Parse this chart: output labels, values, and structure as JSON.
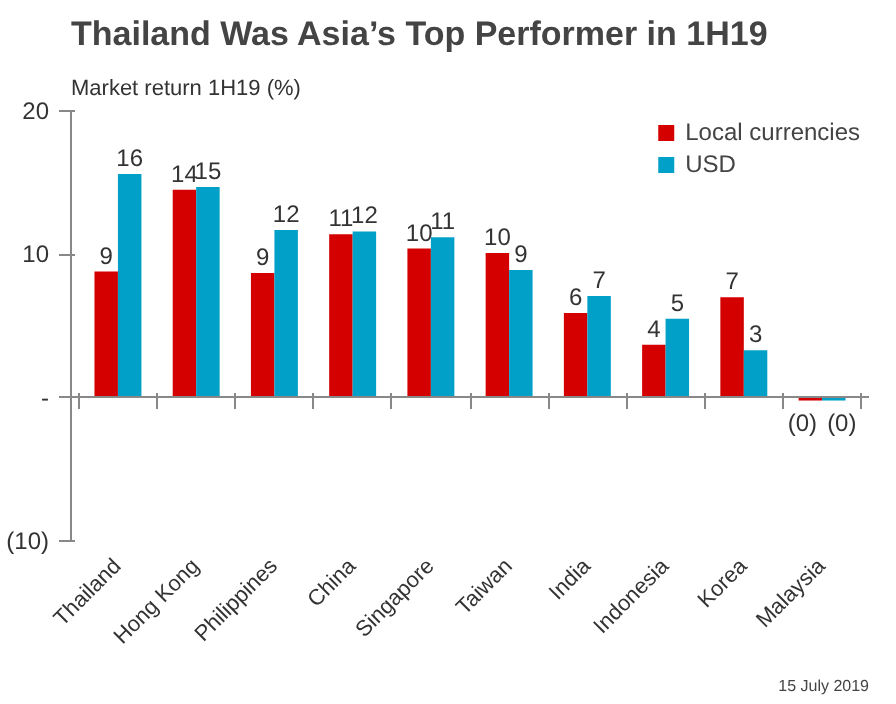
{
  "chart_data": {
    "type": "bar",
    "title": "Thailand Was Asia’s Top Performer in 1H19",
    "ylabel": "Market return 1H19 (%)",
    "categories": [
      "Thailand",
      "Hong Kong",
      "Philippines",
      "China",
      "Singapore",
      "Taiwan",
      "India",
      "Indonesia",
      "Korea",
      "Malaysia"
    ],
    "series": [
      {
        "name": "Local currencies",
        "color": "#d40000",
        "values": [
          8.8,
          14.5,
          8.7,
          11.4,
          10.4,
          10.1,
          5.9,
          3.7,
          7.0,
          -0.2
        ],
        "value_labels": [
          "9",
          "14",
          "9",
          "11",
          "10",
          "10",
          "6",
          "4",
          "7",
          "(0)"
        ]
      },
      {
        "name": "USD",
        "color": "#00a0c8",
        "values": [
          15.6,
          14.7,
          11.7,
          11.6,
          11.2,
          8.9,
          7.1,
          5.5,
          3.3,
          -0.2
        ],
        "value_labels": [
          "16",
          "15",
          "12",
          "12",
          "11",
          "9",
          "7",
          "5",
          "3",
          "(0)"
        ]
      }
    ],
    "ylim": [
      -10,
      20
    ],
    "yticks": [
      20,
      10,
      {
        "value": 0,
        "label": "-"
      },
      {
        "value": -10,
        "label": "(10)"
      }
    ],
    "legend": "top right",
    "annotations": [
      "15 July 2019"
    ]
  }
}
